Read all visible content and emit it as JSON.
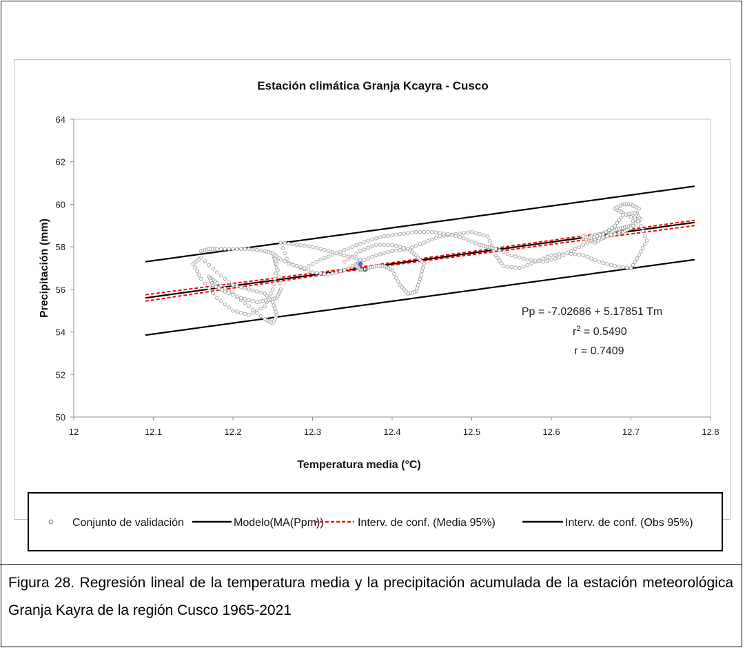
{
  "caption": "Figura 28. Regresión lineal de la temperatura media y la precipitación acumulada de la estación meteorológica Granja Kayra de la región Cusco 1965-2021",
  "colors": {
    "model": "#000000",
    "ci_mean": "#ff0000",
    "ci_obs": "#000000",
    "points": "#a6a6a6",
    "highlight": "#4472c4"
  },
  "chart_data": {
    "type": "scatter",
    "title": "Estación climática Granja Kcayra - Cusco",
    "xlabel": "Temperatura media (°C)",
    "ylabel": "Precipitación (mm)",
    "xlim": [
      12,
      12.8
    ],
    "ylim": [
      50,
      64
    ],
    "x_ticks": [
      "12",
      "12.1",
      "12.2",
      "12.3",
      "12.4",
      "12.5",
      "12.6",
      "12.7",
      "12.8"
    ],
    "y_ticks": [
      "50",
      "52",
      "54",
      "56",
      "58",
      "60",
      "62",
      "64"
    ],
    "grid": false,
    "legend_position": "bottom",
    "annotation": {
      "equation": "Pp = -7.02686 + 5.17851 Tm",
      "r2_label": "r",
      "r2_sup": "2",
      "r2_value": " = 0.5490",
      "r": "r = 0.7409"
    },
    "series": [
      {
        "name": "Conjunto de validación",
        "kind": "points",
        "x": [
          12.16,
          12.17,
          12.18,
          12.2,
          12.22,
          12.24,
          12.25,
          12.255,
          12.25,
          12.24,
          12.22,
          12.2,
          12.18,
          12.16,
          12.15,
          12.16,
          12.18,
          12.2,
          12.22,
          12.24,
          12.25,
          12.255,
          12.25,
          12.24,
          12.22,
          12.2,
          12.18,
          12.17,
          12.175,
          12.19,
          12.21,
          12.23,
          12.245,
          12.255,
          12.26,
          12.255,
          12.25,
          12.26,
          12.28,
          12.3,
          12.32,
          12.34,
          12.36,
          12.38,
          12.4,
          12.42,
          12.44,
          12.46,
          12.48,
          12.5,
          12.52,
          12.53,
          12.54,
          12.56,
          12.58,
          12.6,
          12.62,
          12.64,
          12.66,
          12.68,
          12.7,
          12.71,
          12.72,
          12.71,
          12.69,
          12.68,
          12.69,
          12.7,
          12.71,
          12.7,
          12.68,
          12.66,
          12.64,
          12.655,
          12.67,
          12.68,
          12.69,
          12.7,
          12.34,
          12.36,
          12.38,
          12.4,
          12.42,
          12.43,
          12.44,
          12.435,
          12.43,
          12.42,
          12.41,
          12.4,
          12.39,
          12.38,
          12.37,
          12.36,
          12.355,
          12.36,
          12.34,
          12.32,
          12.3,
          12.28,
          12.26,
          12.27,
          12.29,
          12.31,
          12.33,
          12.35,
          12.37,
          12.39,
          12.41,
          12.43,
          12.45,
          12.47,
          12.49,
          12.51,
          12.52,
          12.53,
          12.55,
          12.57,
          12.59,
          12.61,
          12.63,
          12.65,
          12.67,
          12.69,
          12.7,
          12.712,
          12.705,
          12.69,
          12.68,
          12.665,
          12.65,
          12.64
        ],
        "y": [
          57.8,
          57.9,
          57.9,
          57.9,
          57.9,
          57.8,
          57.7,
          57.0,
          56.0,
          55.2,
          54.8,
          55.0,
          55.6,
          56.5,
          57.2,
          57.5,
          56.8,
          56.2,
          56.0,
          55.8,
          55.4,
          54.8,
          54.4,
          54.6,
          55.2,
          55.8,
          56.3,
          56.6,
          56.2,
          55.9,
          55.6,
          55.4,
          55.5,
          55.6,
          56.0,
          57.2,
          57.7,
          57.4,
          57.1,
          56.8,
          56.7,
          56.9,
          57.3,
          57.6,
          57.8,
          57.9,
          58.2,
          58.5,
          58.6,
          58.7,
          58.5,
          57.6,
          57.1,
          57.0,
          57.3,
          57.6,
          57.7,
          57.6,
          57.3,
          57.1,
          57.0,
          57.6,
          58.3,
          59.2,
          59.6,
          59.8,
          60.0,
          60.0,
          59.8,
          59.0,
          58.8,
          58.6,
          58.4,
          58.2,
          58.5,
          58.8,
          58.9,
          59.0,
          57.3,
          57.8,
          58.1,
          58.1,
          57.9,
          57.6,
          57.2,
          56.5,
          55.9,
          55.8,
          56.2,
          56.9,
          57.1,
          57.1,
          57.0,
          56.9,
          57.1,
          57.4,
          57.6,
          57.8,
          58.0,
          58.1,
          58.2,
          57.2,
          57.0,
          57.4,
          57.7,
          58.0,
          58.3,
          58.5,
          58.6,
          58.7,
          58.7,
          58.6,
          58.4,
          58.1,
          58.0,
          57.9,
          57.6,
          57.4,
          57.3,
          57.5,
          57.9,
          58.3,
          58.5,
          58.7,
          58.9,
          59.3,
          59.6,
          59.5,
          59.0,
          58.6,
          58.4,
          58.5
        ]
      },
      {
        "name": "Modelo(MA(Ppm))",
        "kind": "line",
        "x": [
          12.09,
          12.78
        ],
        "y": [
          55.6,
          59.15
        ]
      },
      {
        "name": "Interv. de conf. (Media 95%)",
        "kind": "dashed-band",
        "x": [
          12.09,
          12.36,
          12.78
        ],
        "upper": [
          55.75,
          57.05,
          59.25
        ],
        "lower": [
          55.45,
          56.95,
          59.0
        ]
      },
      {
        "name": "Interv. de conf. (Obs 95%)",
        "kind": "band-lines",
        "x": [
          12.09,
          12.78
        ],
        "upper": [
          57.3,
          60.85
        ],
        "lower": [
          53.85,
          57.4
        ]
      }
    ]
  }
}
